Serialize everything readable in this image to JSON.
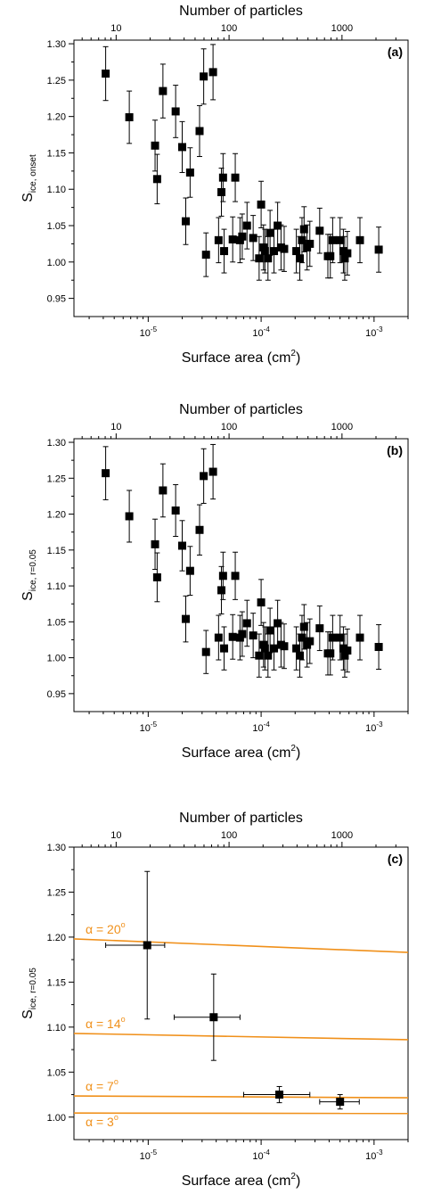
{
  "chart_data": [
    {
      "type": "scatter",
      "panel_label": "(a)",
      "top_axis_title": "Number of particles",
      "top_ticks": [
        {
          "value": 10,
          "label": "10"
        },
        {
          "value": 100,
          "label": "100"
        },
        {
          "value": 1000,
          "label": "1000"
        }
      ],
      "xlabel": "Surface area (cm",
      "xlabel_sup": "2",
      "xlabel_tail": ")",
      "ylabel_main": "S",
      "ylabel_sub": "ice, onset",
      "x_scale": "log",
      "xlim": [
        2.2e-06,
        0.002
      ],
      "ylim": [
        0.925,
        1.305
      ],
      "x_ticks": [
        {
          "value": 1e-05,
          "base": "10",
          "exp": "-5"
        },
        {
          "value": 0.0001,
          "base": "10",
          "exp": "-4"
        },
        {
          "value": 0.001,
          "base": "10",
          "exp": "-3"
        }
      ],
      "y_ticks": [
        "0.95",
        "1.00",
        "1.05",
        "1.10",
        "1.15",
        "1.20",
        "1.25",
        "1.30"
      ],
      "grid": false,
      "series": [
        {
          "points": [
            {
              "x": 4.2e-06,
              "y": 1.259,
              "err": 0.037
            },
            {
              "x": 6.8e-06,
              "y": 1.199,
              "err": 0.036
            },
            {
              "x": 1.15e-05,
              "y": 1.16,
              "err": 0.035
            },
            {
              "x": 1.2e-05,
              "y": 1.114,
              "err": 0.034
            },
            {
              "x": 1.35e-05,
              "y": 1.235,
              "err": 0.037
            },
            {
              "x": 1.75e-05,
              "y": 1.207,
              "err": 0.036
            },
            {
              "x": 2e-05,
              "y": 1.158,
              "err": 0.035
            },
            {
              "x": 2.15e-05,
              "y": 1.056,
              "err": 0.032
            },
            {
              "x": 2.35e-05,
              "y": 1.123,
              "err": 0.034
            },
            {
              "x": 2.85e-05,
              "y": 1.18,
              "err": 0.035
            },
            {
              "x": 3.1e-05,
              "y": 1.255,
              "err": 0.038
            },
            {
              "x": 3.25e-05,
              "y": 1.01,
              "err": 0.03
            },
            {
              "x": 3.75e-05,
              "y": 1.261,
              "err": 0.038
            },
            {
              "x": 4.2e-05,
              "y": 1.03,
              "err": 0.031
            },
            {
              "x": 4.45e-05,
              "y": 1.096,
              "err": 0.033
            },
            {
              "x": 4.6e-05,
              "y": 1.116,
              "err": 0.033
            },
            {
              "x": 4.7e-05,
              "y": 1.015,
              "err": 0.03
            },
            {
              "x": 5.6e-05,
              "y": 1.031,
              "err": 0.031
            },
            {
              "x": 5.9e-05,
              "y": 1.116,
              "err": 0.033
            },
            {
              "x": 6.5e-05,
              "y": 1.03,
              "err": 0.031
            },
            {
              "x": 6.8e-05,
              "y": 1.035,
              "err": 0.031
            },
            {
              "x": 7.5e-05,
              "y": 1.05,
              "err": 0.032
            },
            {
              "x": 8.5e-05,
              "y": 1.033,
              "err": 0.031
            },
            {
              "x": 9.6e-05,
              "y": 1.005,
              "err": 0.03
            },
            {
              "x": 0.0001,
              "y": 1.079,
              "err": 0.032
            },
            {
              "x": 0.000105,
              "y": 1.02,
              "err": 0.031
            },
            {
              "x": 0.000108,
              "y": 1.015,
              "err": 0.03
            },
            {
              "x": 0.000115,
              "y": 1.005,
              "err": 0.03
            },
            {
              "x": 0.00012,
              "y": 1.04,
              "err": 0.031
            },
            {
              "x": 0.00013,
              "y": 1.015,
              "err": 0.03
            },
            {
              "x": 0.00014,
              "y": 1.05,
              "err": 0.032
            },
            {
              "x": 0.00015,
              "y": 1.02,
              "err": 0.031
            },
            {
              "x": 0.00016,
              "y": 1.018,
              "err": 0.031
            },
            {
              "x": 0.000205,
              "y": 1.015,
              "err": 0.03
            },
            {
              "x": 0.00022,
              "y": 1.005,
              "err": 0.03
            },
            {
              "x": 0.00023,
              "y": 1.03,
              "err": 0.031
            },
            {
              "x": 0.00024,
              "y": 1.045,
              "err": 0.031
            },
            {
              "x": 0.000255,
              "y": 1.02,
              "err": 0.031
            },
            {
              "x": 0.00027,
              "y": 1.025,
              "err": 0.031
            },
            {
              "x": 0.00033,
              "y": 1.043,
              "err": 0.031
            },
            {
              "x": 0.00039,
              "y": 1.008,
              "err": 0.03
            },
            {
              "x": 0.00041,
              "y": 1.008,
              "err": 0.03
            },
            {
              "x": 0.00043,
              "y": 1.03,
              "err": 0.031
            },
            {
              "x": 0.0005,
              "y": 1.03,
              "err": 0.031
            },
            {
              "x": 0.000535,
              "y": 1.015,
              "err": 0.03
            },
            {
              "x": 0.00055,
              "y": 1.005,
              "err": 0.03
            },
            {
              "x": 0.00058,
              "y": 1.012,
              "err": 0.03
            },
            {
              "x": 0.00075,
              "y": 1.03,
              "err": 0.031
            },
            {
              "x": 0.0011,
              "y": 1.017,
              "err": 0.031
            }
          ]
        }
      ],
      "lines": []
    },
    {
      "type": "scatter",
      "panel_label": "(b)",
      "top_axis_title": "Number of particles",
      "top_ticks": [
        {
          "value": 10,
          "label": "10"
        },
        {
          "value": 100,
          "label": "100"
        },
        {
          "value": 1000,
          "label": "1000"
        }
      ],
      "xlabel": "Surface area (cm",
      "xlabel_sup": "2",
      "xlabel_tail": ")",
      "ylabel_main": "S",
      "ylabel_sub": "ice, r=0.05",
      "x_scale": "log",
      "xlim": [
        2.2e-06,
        0.002
      ],
      "ylim": [
        0.925,
        1.305
      ],
      "x_ticks": [
        {
          "value": 1e-05,
          "base": "10",
          "exp": "-5"
        },
        {
          "value": 0.0001,
          "base": "10",
          "exp": "-4"
        },
        {
          "value": 0.001,
          "base": "10",
          "exp": "-3"
        }
      ],
      "y_ticks": [
        "0.95",
        "1.00",
        "1.05",
        "1.10",
        "1.15",
        "1.20",
        "1.25",
        "1.30"
      ],
      "grid": false,
      "series": [
        {
          "points": [
            {
              "x": 4.2e-06,
              "y": 1.257,
              "err": 0.037
            },
            {
              "x": 6.8e-06,
              "y": 1.197,
              "err": 0.036
            },
            {
              "x": 1.15e-05,
              "y": 1.158,
              "err": 0.035
            },
            {
              "x": 1.2e-05,
              "y": 1.112,
              "err": 0.034
            },
            {
              "x": 1.35e-05,
              "y": 1.233,
              "err": 0.037
            },
            {
              "x": 1.75e-05,
              "y": 1.205,
              "err": 0.036
            },
            {
              "x": 2e-05,
              "y": 1.156,
              "err": 0.035
            },
            {
              "x": 2.15e-05,
              "y": 1.054,
              "err": 0.032
            },
            {
              "x": 2.35e-05,
              "y": 1.121,
              "err": 0.034
            },
            {
              "x": 2.85e-05,
              "y": 1.178,
              "err": 0.035
            },
            {
              "x": 3.1e-05,
              "y": 1.253,
              "err": 0.038
            },
            {
              "x": 3.25e-05,
              "y": 1.008,
              "err": 0.03
            },
            {
              "x": 3.75e-05,
              "y": 1.259,
              "err": 0.038
            },
            {
              "x": 4.2e-05,
              "y": 1.028,
              "err": 0.031
            },
            {
              "x": 4.45e-05,
              "y": 1.094,
              "err": 0.033
            },
            {
              "x": 4.6e-05,
              "y": 1.114,
              "err": 0.033
            },
            {
              "x": 4.7e-05,
              "y": 1.013,
              "err": 0.03
            },
            {
              "x": 5.6e-05,
              "y": 1.029,
              "err": 0.031
            },
            {
              "x": 5.9e-05,
              "y": 1.114,
              "err": 0.033
            },
            {
              "x": 6.5e-05,
              "y": 1.028,
              "err": 0.031
            },
            {
              "x": 6.8e-05,
              "y": 1.033,
              "err": 0.031
            },
            {
              "x": 7.5e-05,
              "y": 1.048,
              "err": 0.032
            },
            {
              "x": 8.5e-05,
              "y": 1.031,
              "err": 0.031
            },
            {
              "x": 9.6e-05,
              "y": 1.003,
              "err": 0.03
            },
            {
              "x": 0.0001,
              "y": 1.077,
              "err": 0.032
            },
            {
              "x": 0.000105,
              "y": 1.018,
              "err": 0.031
            },
            {
              "x": 0.000108,
              "y": 1.013,
              "err": 0.03
            },
            {
              "x": 0.000115,
              "y": 1.003,
              "err": 0.03
            },
            {
              "x": 0.00012,
              "y": 1.038,
              "err": 0.031
            },
            {
              "x": 0.00013,
              "y": 1.013,
              "err": 0.03
            },
            {
              "x": 0.00014,
              "y": 1.048,
              "err": 0.032
            },
            {
              "x": 0.00015,
              "y": 1.018,
              "err": 0.031
            },
            {
              "x": 0.00016,
              "y": 1.016,
              "err": 0.031
            },
            {
              "x": 0.000205,
              "y": 1.013,
              "err": 0.03
            },
            {
              "x": 0.00022,
              "y": 1.003,
              "err": 0.03
            },
            {
              "x": 0.00023,
              "y": 1.028,
              "err": 0.031
            },
            {
              "x": 0.00024,
              "y": 1.043,
              "err": 0.031
            },
            {
              "x": 0.000255,
              "y": 1.018,
              "err": 0.031
            },
            {
              "x": 0.00027,
              "y": 1.023,
              "err": 0.031
            },
            {
              "x": 0.00033,
              "y": 1.041,
              "err": 0.031
            },
            {
              "x": 0.00039,
              "y": 1.006,
              "err": 0.03
            },
            {
              "x": 0.00041,
              "y": 1.006,
              "err": 0.03
            },
            {
              "x": 0.00043,
              "y": 1.028,
              "err": 0.031
            },
            {
              "x": 0.0005,
              "y": 1.028,
              "err": 0.031
            },
            {
              "x": 0.000535,
              "y": 1.013,
              "err": 0.03
            },
            {
              "x": 0.00055,
              "y": 1.003,
              "err": 0.03
            },
            {
              "x": 0.00058,
              "y": 1.01,
              "err": 0.03
            },
            {
              "x": 0.00075,
              "y": 1.028,
              "err": 0.031
            },
            {
              "x": 0.0011,
              "y": 1.015,
              "err": 0.031
            }
          ]
        }
      ],
      "lines": []
    },
    {
      "type": "scatter",
      "panel_label": "(c)",
      "top_axis_title": "Number of particles",
      "top_ticks": [
        {
          "value": 10,
          "label": "10"
        },
        {
          "value": 100,
          "label": "100"
        },
        {
          "value": 1000,
          "label": "1000"
        }
      ],
      "xlabel": "Surface area (cm",
      "xlabel_sup": "2",
      "xlabel_tail": ")",
      "ylabel_main": "S",
      "ylabel_sub": "ice, r=0.05",
      "x_scale": "log",
      "xlim": [
        2.2e-06,
        0.002
      ],
      "ylim": [
        0.975,
        1.3
      ],
      "x_ticks": [
        {
          "value": 1e-05,
          "base": "10",
          "exp": "-5"
        },
        {
          "value": 0.0001,
          "base": "10",
          "exp": "-4"
        },
        {
          "value": 0.001,
          "base": "10",
          "exp": "-3"
        }
      ],
      "y_ticks": [
        "1.00",
        "1.05",
        "1.10",
        "1.15",
        "1.20",
        "1.25",
        "1.30"
      ],
      "grid": false,
      "series": [
        {
          "points": [
            {
              "x": 9.8e-06,
              "y": 1.191,
              "err": 0.082,
              "xerr": [
                4.2e-06,
                1.4e-05
              ]
            },
            {
              "x": 3.8e-05,
              "y": 1.111,
              "err": 0.048,
              "xerr": [
                1.7e-05,
                6.5e-05
              ]
            },
            {
              "x": 0.000145,
              "y": 1.025,
              "err": 0.009,
              "xerr": [
                7e-05,
                0.00027
              ]
            },
            {
              "x": 0.0005,
              "y": 1.017,
              "err": 0.008,
              "xerr": [
                0.00033,
                0.00074
              ]
            }
          ]
        }
      ],
      "lines_color": "#f0901a",
      "lines": [
        {
          "label": "α = 20",
          "label_sup": "o",
          "y_start": 1.198,
          "y_end": 1.183
        },
        {
          "label": "α = 14",
          "label_sup": "o",
          "y_start": 1.093,
          "y_end": 1.086
        },
        {
          "label": "α = 7",
          "label_sup": "o",
          "y_start": 1.0235,
          "y_end": 1.0215
        },
        {
          "label": "α = 3",
          "label_sup": "o",
          "y_start": 1.0045,
          "y_end": 1.004
        }
      ]
    }
  ]
}
